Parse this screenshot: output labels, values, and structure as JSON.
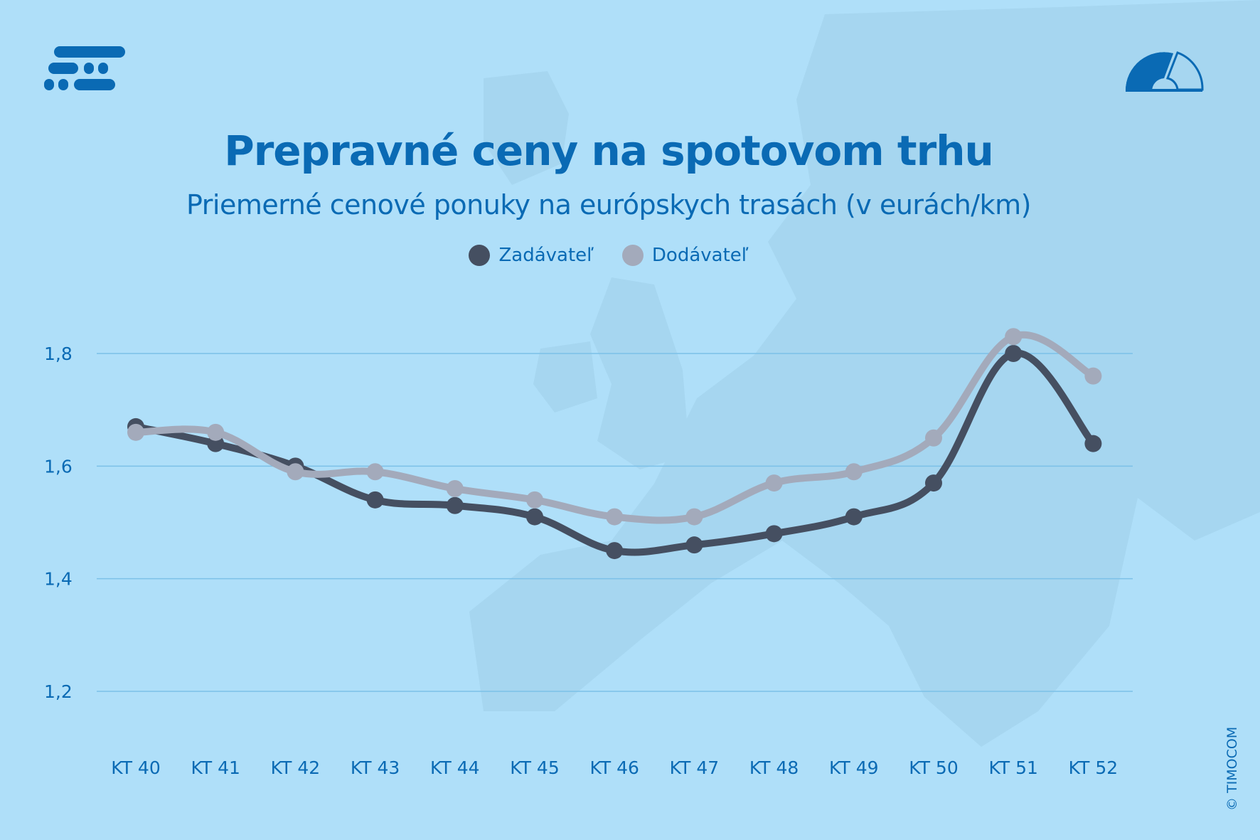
{
  "title": "Prepravné ceny na spotovom trhu",
  "subtitle": "Priemerné cenové ponuky na európskych trasách (v eurách/km)",
  "copyright": "© TIMOCOM",
  "icons": {
    "logo": "timocom-logo-icon",
    "gauge": "gauge-icon"
  },
  "colors": {
    "background": "#afdff9",
    "text": "#0a6ab4",
    "grid": "#7cc0e8",
    "zadavatel": "#454f61",
    "dodavatel": "#a3aabb"
  },
  "chart_data": {
    "type": "line",
    "title": "Prepravné ceny na spotovom trhu",
    "subtitle": "Priemerné cenové ponuky na európskych trasách (v eurách/km)",
    "categories": [
      "KT 40",
      "KT 41",
      "KT 42",
      "KT 43",
      "KT 44",
      "KT 45",
      "KT 46",
      "KT 47",
      "KT 48",
      "KT 49",
      "KT 50",
      "KT 51",
      "KT 52"
    ],
    "series": [
      {
        "name": "Zadávateľ",
        "color": "#454f61",
        "values": [
          1.67,
          1.64,
          1.6,
          1.54,
          1.53,
          1.51,
          1.45,
          1.46,
          1.48,
          1.51,
          1.57,
          1.8,
          1.64
        ]
      },
      {
        "name": "Dodávateľ",
        "color": "#a3aabb",
        "values": [
          1.66,
          1.66,
          1.59,
          1.59,
          1.56,
          1.54,
          1.51,
          1.51,
          1.57,
          1.59,
          1.65,
          1.83,
          1.76
        ]
      }
    ],
    "yticks": [
      "1,2",
      "1,4",
      "1,6",
      "1,8"
    ],
    "ytick_values": [
      1.2,
      1.4,
      1.6,
      1.8
    ],
    "ylim": [
      1.1,
      1.9
    ],
    "grid": true,
    "legend": "top-center",
    "xlabel": "",
    "ylabel": ""
  }
}
